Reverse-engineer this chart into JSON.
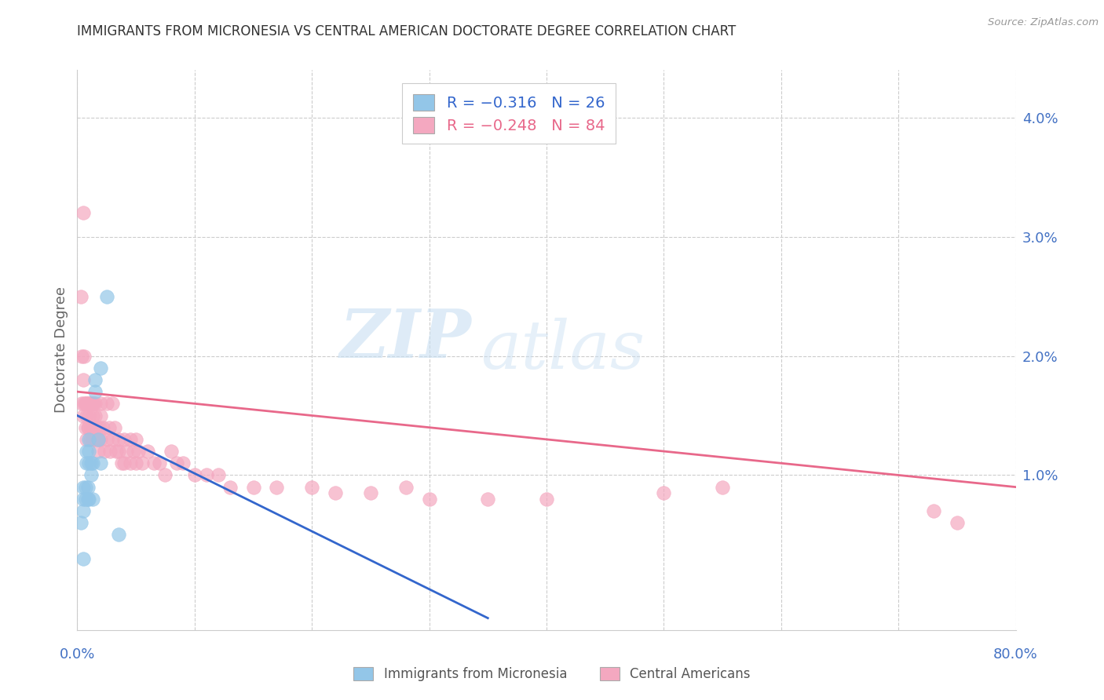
{
  "title": "IMMIGRANTS FROM MICRONESIA VS CENTRAL AMERICAN DOCTORATE DEGREE CORRELATION CHART",
  "source": "Source: ZipAtlas.com",
  "ylabel": "Doctorate Degree",
  "right_yticks": [
    0.0,
    0.01,
    0.02,
    0.03,
    0.04
  ],
  "right_yticklabels": [
    "",
    "1.0%",
    "2.0%",
    "3.0%",
    "4.0%"
  ],
  "xmin": 0.0,
  "xmax": 0.8,
  "ymin": -0.003,
  "ymax": 0.044,
  "legend_blue_r": "R = −0.316",
  "legend_blue_n": "N = 26",
  "legend_pink_r": "R = −0.248",
  "legend_pink_n": "N = 84",
  "legend_label_blue": "Immigrants from Micronesia",
  "legend_label_pink": "Central Americans",
  "blue_color": "#93c6e8",
  "pink_color": "#f4a8c0",
  "blue_line_color": "#3366cc",
  "pink_line_color": "#e8688a",
  "axis_color": "#4472c4",
  "watermark_zip": "ZIP",
  "watermark_atlas": "atlas",
  "blue_x": [
    0.003,
    0.005,
    0.005,
    0.005,
    0.005,
    0.007,
    0.007,
    0.008,
    0.008,
    0.009,
    0.009,
    0.01,
    0.01,
    0.01,
    0.01,
    0.012,
    0.012,
    0.013,
    0.013,
    0.015,
    0.015,
    0.018,
    0.02,
    0.02,
    0.025,
    0.035
  ],
  "blue_y": [
    0.006,
    0.009,
    0.008,
    0.007,
    0.003,
    0.009,
    0.008,
    0.012,
    0.011,
    0.009,
    0.008,
    0.013,
    0.012,
    0.011,
    0.008,
    0.011,
    0.01,
    0.011,
    0.008,
    0.018,
    0.017,
    0.013,
    0.019,
    0.011,
    0.025,
    0.005
  ],
  "pink_x": [
    0.003,
    0.004,
    0.004,
    0.005,
    0.005,
    0.005,
    0.006,
    0.006,
    0.007,
    0.007,
    0.008,
    0.008,
    0.008,
    0.009,
    0.009,
    0.01,
    0.01,
    0.01,
    0.011,
    0.011,
    0.012,
    0.012,
    0.013,
    0.013,
    0.013,
    0.014,
    0.015,
    0.015,
    0.015,
    0.016,
    0.017,
    0.018,
    0.018,
    0.019,
    0.02,
    0.02,
    0.02,
    0.022,
    0.023,
    0.025,
    0.025,
    0.027,
    0.028,
    0.03,
    0.03,
    0.032,
    0.033,
    0.035,
    0.035,
    0.038,
    0.04,
    0.04,
    0.042,
    0.045,
    0.045,
    0.048,
    0.05,
    0.05,
    0.052,
    0.055,
    0.06,
    0.065,
    0.07,
    0.075,
    0.08,
    0.085,
    0.09,
    0.1,
    0.11,
    0.12,
    0.13,
    0.15,
    0.17,
    0.2,
    0.22,
    0.25,
    0.28,
    0.3,
    0.35,
    0.4,
    0.5,
    0.55,
    0.73,
    0.75
  ],
  "pink_y": [
    0.025,
    0.02,
    0.016,
    0.032,
    0.018,
    0.015,
    0.02,
    0.016,
    0.016,
    0.014,
    0.016,
    0.015,
    0.013,
    0.016,
    0.014,
    0.016,
    0.015,
    0.014,
    0.016,
    0.013,
    0.016,
    0.014,
    0.016,
    0.015,
    0.013,
    0.016,
    0.016,
    0.015,
    0.013,
    0.014,
    0.014,
    0.013,
    0.012,
    0.014,
    0.016,
    0.015,
    0.013,
    0.014,
    0.012,
    0.016,
    0.013,
    0.014,
    0.012,
    0.016,
    0.013,
    0.014,
    0.012,
    0.013,
    0.012,
    0.011,
    0.013,
    0.011,
    0.012,
    0.013,
    0.011,
    0.012,
    0.013,
    0.011,
    0.012,
    0.011,
    0.012,
    0.011,
    0.011,
    0.01,
    0.012,
    0.011,
    0.011,
    0.01,
    0.01,
    0.01,
    0.009,
    0.009,
    0.009,
    0.009,
    0.0085,
    0.0085,
    0.009,
    0.008,
    0.008,
    0.008,
    0.0085,
    0.009,
    0.007,
    0.006
  ],
  "blue_line_x": [
    0.0,
    0.35
  ],
  "blue_line_y": [
    0.015,
    -0.002
  ],
  "pink_line_x": [
    0.0,
    0.8
  ],
  "pink_line_y": [
    0.017,
    0.009
  ]
}
